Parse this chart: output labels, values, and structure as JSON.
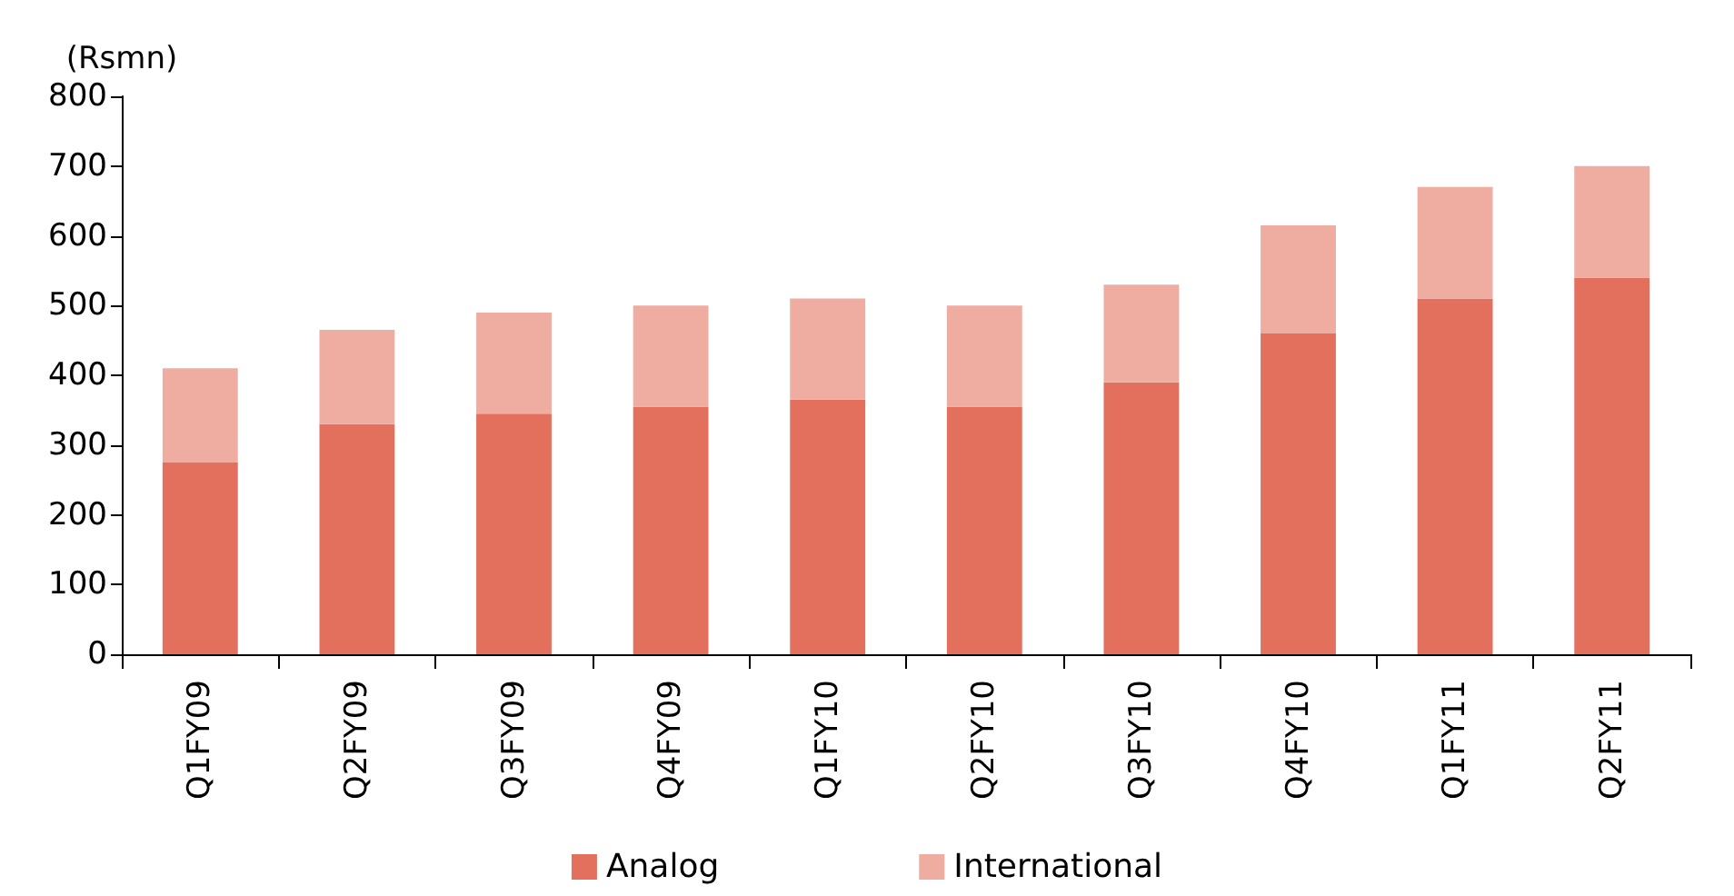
{
  "chart_data": {
    "type": "bar",
    "ylabel": "(Rsmn)",
    "stacked": true,
    "grid": false,
    "legend": "bottom",
    "categories": [
      "Q1FY09",
      "Q2FY09",
      "Q3FY09",
      "Q4FY09",
      "Q1FY10",
      "Q2FY10",
      "Q3FY10",
      "Q4FY10",
      "Q1FY11",
      "Q2FY11"
    ],
    "series": [
      {
        "name": "Analog",
        "color": "#e2705d",
        "values": [
          275,
          330,
          345,
          355,
          365,
          355,
          390,
          460,
          510,
          540
        ]
      },
      {
        "name": "International",
        "color": "#efaca0",
        "values": [
          135,
          135,
          145,
          145,
          145,
          145,
          140,
          155,
          160,
          160
        ]
      }
    ],
    "ylim": [
      0,
      800
    ],
    "yticks": [
      0,
      100,
      200,
      300,
      400,
      500,
      600,
      700,
      800
    ]
  }
}
